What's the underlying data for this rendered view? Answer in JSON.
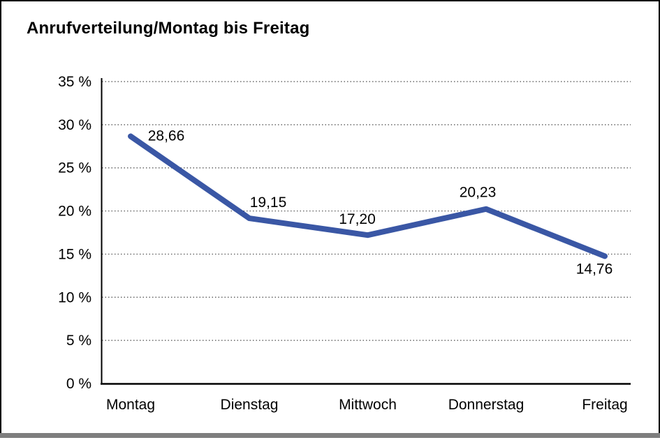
{
  "window": {
    "background": "#FFFFFF",
    "border_color": "#000000",
    "bottom_edge_color": "#7E7E7E"
  },
  "header": {
    "title": "Anrufverteilung/Montag bis Freitag"
  },
  "chart_data": {
    "type": "line",
    "title": "Anrufverteilung/Montag bis Freitag",
    "categories": [
      "Montag",
      "Dienstag",
      "Mittwoch",
      "Donnerstag",
      "Freitag"
    ],
    "series": [
      {
        "name": "Anrufverteilung",
        "values": [
          28.66,
          19.15,
          17.2,
          20.23,
          14.76
        ]
      }
    ],
    "value_labels": [
      "28,66",
      "19,15",
      "17,20",
      "20,23",
      "14,76"
    ],
    "value_label_positions": [
      "right",
      "above",
      "above",
      "above",
      "below"
    ],
    "xlabel": "",
    "ylabel": "",
    "ylim": [
      0,
      35
    ],
    "y_tick_step": 5,
    "y_tick_labels": [
      "0 %",
      "5 %",
      "10 %",
      "15 %",
      "20 %",
      "25 %",
      "30 %",
      "35 %"
    ],
    "grid": "horizontal-dotted",
    "legend": "none",
    "line_color": "#3A57A5",
    "text_color": "#000000",
    "grid_color": "#4A4A4A"
  }
}
